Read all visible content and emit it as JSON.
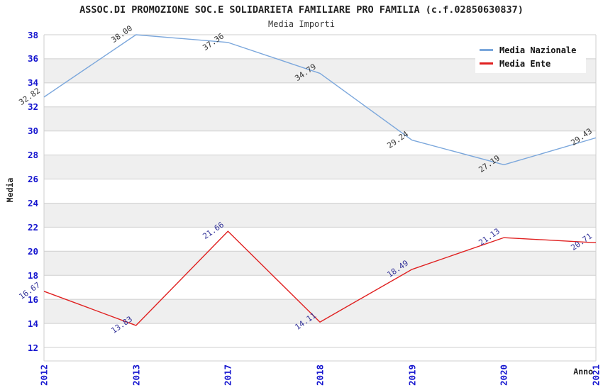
{
  "header": {
    "title": "ASSOC.DI PROMOZIONE SOC.E SOLIDARIETA FAMILIARE PRO FAMILIA (c.f.02850630837)",
    "subtitle": "Media Importi"
  },
  "axes": {
    "y_title": "Media",
    "x_title": "Anno"
  },
  "legend": {
    "position": "top-right",
    "items": [
      {
        "label": "Media Nazionale",
        "color": "#7ba7dc"
      },
      {
        "label": "Media Ente",
        "color": "#e02020"
      }
    ]
  },
  "colors": {
    "tick_label_blue": "#1515cf",
    "grid_line": "#cfcfcf",
    "stripe_gray": "#efefef",
    "series_nazionale_line": "#7ba7dc",
    "series_ente_line": "#e02020",
    "label_nazionale_text": "#333333",
    "label_ente_text": "#333399"
  },
  "chart_data": {
    "type": "line",
    "title": "ASSOC.DI PROMOZIONE SOC.E SOLIDARIETA FAMILIARE PRO FAMILIA (c.f.02850630837)",
    "subtitle": "Media Importi",
    "xlabel": "Anno",
    "ylabel": "Media",
    "x": [
      "2012",
      "2013",
      "2017",
      "2018",
      "2019",
      "2020",
      "2021"
    ],
    "series": [
      {
        "name": "Media Nazionale",
        "color": "#7ba7dc",
        "label_color": "#333333",
        "values": [
          32.82,
          38.0,
          37.36,
          34.79,
          29.24,
          27.19,
          29.43
        ]
      },
      {
        "name": "Media Ente",
        "color": "#e02020",
        "label_color": "#333399",
        "values": [
          16.67,
          13.83,
          21.66,
          14.11,
          18.49,
          21.13,
          20.71
        ]
      }
    ],
    "ylim": [
      12,
      38
    ],
    "yticks": [
      12,
      14,
      16,
      18,
      20,
      22,
      24,
      26,
      28,
      30,
      32,
      34,
      36,
      38
    ],
    "grid": "horizontal gridlines every 2 units with alternating white/gray bands",
    "legend_position": "top-right",
    "point_labels": "each point labeled with value, rotated ~35deg"
  }
}
